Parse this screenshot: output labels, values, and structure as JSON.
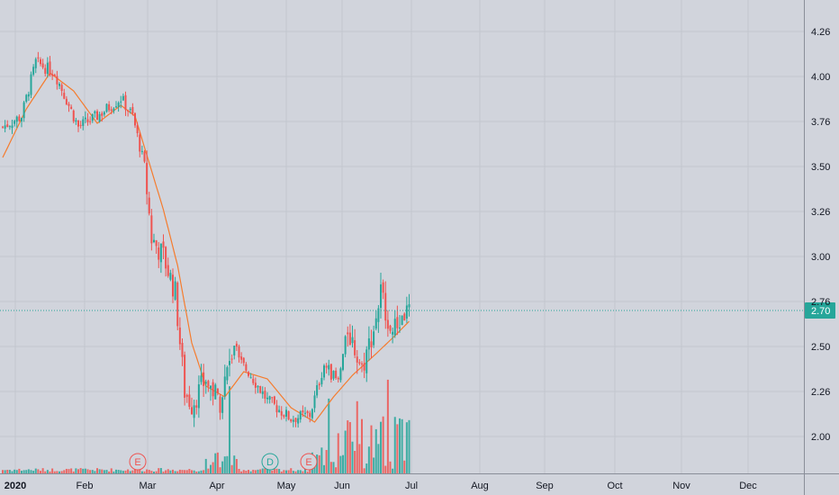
{
  "chart_data": {
    "type": "candlestick",
    "y_axis": {
      "ticks": [
        4.26,
        4.0,
        3.76,
        3.5,
        3.26,
        3.0,
        2.76,
        2.5,
        2.26,
        2.0
      ],
      "tick_labels": [
        "4.26",
        "4.00",
        "3.76",
        "3.50",
        "3.26",
        "3.00",
        "2.76",
        "2.50",
        "2.26",
        "2.00"
      ],
      "ylim": [
        1.78,
        4.36
      ]
    },
    "x_axis": {
      "labels": [
        "2020",
        "Feb",
        "Mar",
        "Apr",
        "May",
        "Jun",
        "Jul",
        "Aug",
        "Sep",
        "Oct",
        "Nov",
        "Dec"
      ]
    },
    "last_price": {
      "value": 2.7,
      "label": "2.70",
      "color": "#26a69a"
    },
    "colors": {
      "up": "#26a69a",
      "down": "#ef5350",
      "ma": "#f57c2e",
      "background": "#d1d4dc"
    },
    "price_key": [
      {
        "i": 0,
        "y": 3.72
      },
      {
        "i": 8,
        "y": 3.78
      },
      {
        "i": 14,
        "y": 4.08
      },
      {
        "i": 22,
        "y": 4.02
      },
      {
        "i": 32,
        "y": 3.72
      },
      {
        "i": 40,
        "y": 3.78
      },
      {
        "i": 50,
        "y": 3.88
      },
      {
        "i": 55,
        "y": 3.78
      },
      {
        "i": 60,
        "y": 3.5
      },
      {
        "i": 63,
        "y": 3.1
      },
      {
        "i": 68,
        "y": 3.0
      },
      {
        "i": 73,
        "y": 2.8
      },
      {
        "i": 77,
        "y": 2.25
      },
      {
        "i": 80,
        "y": 2.18
      },
      {
        "i": 86,
        "y": 2.32
      },
      {
        "i": 92,
        "y": 2.2
      },
      {
        "i": 97,
        "y": 2.46
      },
      {
        "i": 104,
        "y": 2.36
      },
      {
        "i": 112,
        "y": 2.2
      },
      {
        "i": 122,
        "y": 2.1
      },
      {
        "i": 130,
        "y": 2.12
      },
      {
        "i": 136,
        "y": 2.4
      },
      {
        "i": 142,
        "y": 2.3
      },
      {
        "i": 146,
        "y": 2.6
      },
      {
        "i": 152,
        "y": 2.38
      },
      {
        "i": 157,
        "y": 2.6
      },
      {
        "i": 160,
        "y": 2.8
      },
      {
        "i": 165,
        "y": 2.58
      },
      {
        "i": 170,
        "y": 2.68
      },
      {
        "i": 172,
        "y": 2.7
      }
    ],
    "ma_key": [
      {
        "i": 0,
        "y": 3.55
      },
      {
        "i": 10,
        "y": 3.82
      },
      {
        "i": 20,
        "y": 4.02
      },
      {
        "i": 30,
        "y": 3.92
      },
      {
        "i": 40,
        "y": 3.74
      },
      {
        "i": 50,
        "y": 3.84
      },
      {
        "i": 56,
        "y": 3.78
      },
      {
        "i": 62,
        "y": 3.52
      },
      {
        "i": 68,
        "y": 3.26
      },
      {
        "i": 74,
        "y": 2.95
      },
      {
        "i": 80,
        "y": 2.52
      },
      {
        "i": 86,
        "y": 2.28
      },
      {
        "i": 94,
        "y": 2.22
      },
      {
        "i": 102,
        "y": 2.36
      },
      {
        "i": 112,
        "y": 2.32
      },
      {
        "i": 122,
        "y": 2.16
      },
      {
        "i": 132,
        "y": 2.08
      },
      {
        "i": 140,
        "y": 2.22
      },
      {
        "i": 148,
        "y": 2.34
      },
      {
        "i": 158,
        "y": 2.46
      },
      {
        "i": 166,
        "y": 2.56
      },
      {
        "i": 172,
        "y": 2.64
      }
    ],
    "events": [
      {
        "letter": "E",
        "color": "#ef5350"
      },
      {
        "letter": "D",
        "color": "#26a69a"
      },
      {
        "letter": "E",
        "color": "#ef5350"
      }
    ]
  }
}
